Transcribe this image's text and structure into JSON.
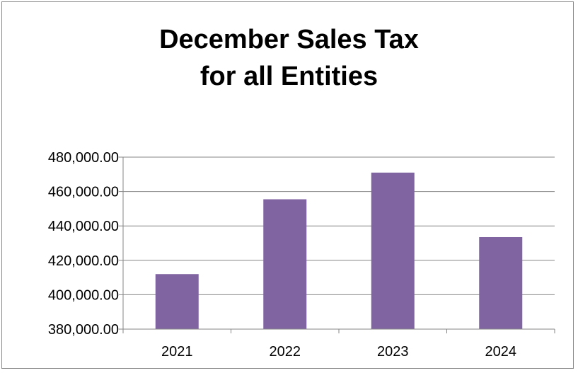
{
  "chart_data": {
    "type": "bar",
    "title_lines": [
      "December Sales Tax",
      "for all Entities"
    ],
    "categories": [
      "2021",
      "2022",
      "2023",
      "2024"
    ],
    "values": [
      412000,
      455500,
      471000,
      433500
    ],
    "ylim": [
      380000,
      480000
    ],
    "yticks": [
      380000,
      400000,
      420000,
      440000,
      460000,
      480000
    ],
    "ytick_labels": [
      "380,000.00",
      "400,000.00",
      "420,000.00",
      "440,000.00",
      "460,000.00",
      "480,000.00"
    ],
    "xlabel": "",
    "ylabel": "",
    "grid": true,
    "legend": "none",
    "bar_color": "#8064a2"
  }
}
